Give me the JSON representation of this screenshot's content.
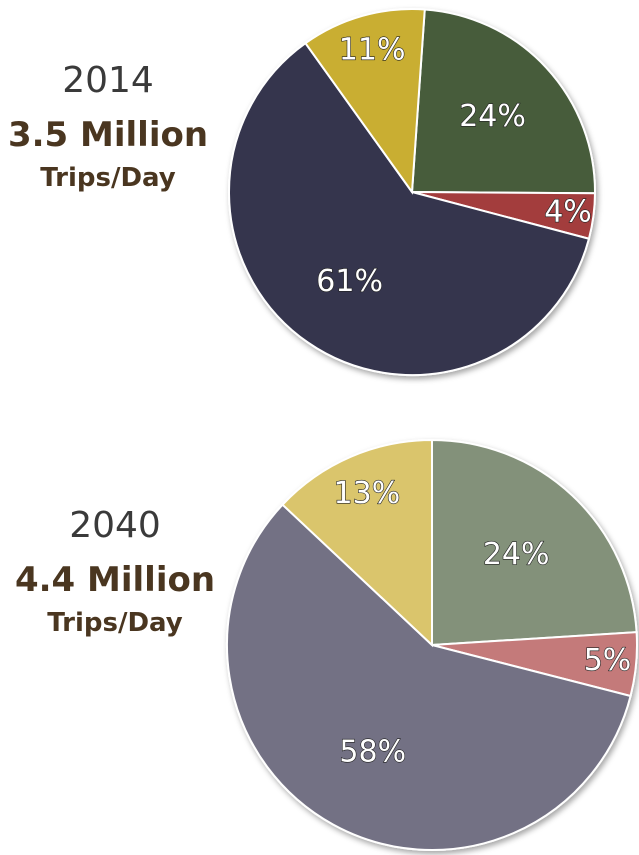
{
  "chart_data": [
    {
      "type": "pie",
      "title": "2014",
      "subtitle": "3.5 Million",
      "caption": "Trips/Day",
      "values": [
        24,
        4,
        61,
        11
      ],
      "value_labels": [
        "24%",
        "4%",
        "61%",
        "11%"
      ],
      "colors": [
        "#465c3a",
        "#a33c3e",
        "#34344d",
        "#c9ae30"
      ]
    },
    {
      "type": "pie",
      "title": "2040",
      "subtitle": "4.4 Million",
      "caption": "Trips/Day",
      "values": [
        24,
        5,
        58,
        13
      ],
      "value_labels": [
        "24%",
        "5%",
        "58%",
        "13%"
      ],
      "colors": [
        "#83917a",
        "#c47a7a",
        "#737184",
        "#dac56c"
      ]
    }
  ]
}
